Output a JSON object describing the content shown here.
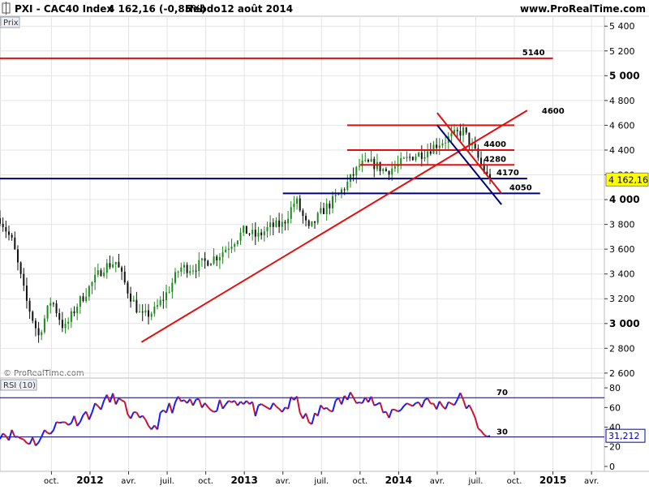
{
  "header": {
    "title": "PXI - CAC40 Index",
    "price_change": "4 162,16 (-0,85%)",
    "timeframe": "Hebdo",
    "date": "12 août 2014",
    "site": "www.ProRealTime.com"
  },
  "main_panel": {
    "label": "Prix",
    "watermark": "© ProRealTime.com"
  },
  "rsi_panel": {
    "label": "RSI (10)"
  },
  "colors": {
    "up_candle": "#1e8a1e",
    "down_candle": "#111111",
    "resistance": "#e01010",
    "support": "#00007a",
    "price_tag": "#ffff00",
    "rsi_up": "#1a1aff",
    "rsi_down": "#cc1133",
    "grid": "#e4e4e4"
  },
  "chart_data": [
    {
      "type": "candlestick",
      "y_axis": {
        "ylim": [
          2560,
          5480
        ],
        "ticks": [
          2600,
          2800,
          3000,
          3200,
          3400,
          3600,
          3800,
          4000,
          4200,
          4400,
          4600,
          4800,
          5000,
          5200,
          5400
        ],
        "tick_labels": [
          "2 600",
          "2 800",
          "3 000",
          "3 200",
          "3 400",
          "3 600",
          "3 800",
          "4 000",
          "4 200",
          "4 400",
          "4 600",
          "4 800",
          "5 000",
          "5 200",
          "5 400"
        ],
        "bold_ticks": [
          3000,
          4000,
          5000
        ]
      },
      "x_axis": {
        "start": "2011-06",
        "end": "2015-05",
        "ticks": [
          {
            "date": "2011-10",
            "label": "oct.",
            "bold": false
          },
          {
            "date": "2012-01",
            "label": "2012",
            "bold": true
          },
          {
            "date": "2012-04",
            "label": "avr.",
            "bold": false
          },
          {
            "date": "2012-07",
            "label": "juil.",
            "bold": false
          },
          {
            "date": "2012-10",
            "label": "oct.",
            "bold": false
          },
          {
            "date": "2013-01",
            "label": "2013",
            "bold": true
          },
          {
            "date": "2013-04",
            "label": "avr.",
            "bold": false
          },
          {
            "date": "2013-07",
            "label": "juil.",
            "bold": false
          },
          {
            "date": "2013-10",
            "label": "oct.",
            "bold": false
          },
          {
            "date": "2014-01",
            "label": "2014",
            "bold": true
          },
          {
            "date": "2014-04",
            "label": "avr.",
            "bold": false
          },
          {
            "date": "2014-07",
            "label": "juil.",
            "bold": false
          },
          {
            "date": "2014-10",
            "label": "oct.",
            "bold": false
          },
          {
            "date": "2015-01",
            "label": "2015",
            "bold": true
          },
          {
            "date": "2015-04",
            "label": "avr.",
            "bold": false
          }
        ]
      },
      "price_path": [
        [
          "2011-06",
          3850
        ],
        [
          "2011-07",
          3650
        ],
        [
          "2011-08",
          3200
        ],
        [
          "2011-09",
          2900
        ],
        [
          "2011-10",
          3200
        ],
        [
          "2011-11",
          2950
        ],
        [
          "2011-12",
          3150
        ],
        [
          "2012-01",
          3300
        ],
        [
          "2012-02",
          3450
        ],
        [
          "2012-03",
          3500
        ],
        [
          "2012-04",
          3250
        ],
        [
          "2012-05",
          3050
        ],
        [
          "2012-06",
          3100
        ],
        [
          "2012-07",
          3250
        ],
        [
          "2012-08",
          3450
        ],
        [
          "2012-09",
          3450
        ],
        [
          "2012-10",
          3500
        ],
        [
          "2012-11",
          3550
        ],
        [
          "2012-12",
          3650
        ],
        [
          "2013-01",
          3750
        ],
        [
          "2013-02",
          3700
        ],
        [
          "2013-03",
          3780
        ],
        [
          "2013-04",
          3800
        ],
        [
          "2013-05",
          4000
        ],
        [
          "2013-06",
          3750
        ],
        [
          "2013-07",
          3900
        ],
        [
          "2013-08",
          4000
        ],
        [
          "2013-09",
          4130
        ],
        [
          "2013-10",
          4280
        ],
        [
          "2013-11",
          4290
        ],
        [
          "2013-12",
          4230
        ],
        [
          "2014-01",
          4280
        ],
        [
          "2014-02",
          4350
        ],
        [
          "2014-03",
          4380
        ],
        [
          "2014-04",
          4450
        ],
        [
          "2014-05",
          4500
        ],
        [
          "2014-06",
          4560
        ],
        [
          "2014-07",
          4370
        ],
        [
          "2014-08",
          4162
        ]
      ],
      "last_price": {
        "value": 4162.16,
        "label": "4 162,16"
      },
      "horizontal_levels": [
        {
          "value": 5140,
          "label": "5140",
          "color": "red",
          "from": "2011-06",
          "to": "2015-01"
        },
        {
          "value": 4600,
          "label": "",
          "color": "red",
          "from": "2013-09",
          "to": "2014-10"
        },
        {
          "value": 4400,
          "label": "4400",
          "color": "red",
          "from": "2013-09",
          "to": "2014-10"
        },
        {
          "value": 4280,
          "label": "4280",
          "color": "red",
          "from": "2013-10",
          "to": "2014-10"
        },
        {
          "value": 4170,
          "label": "4170",
          "color": "blue",
          "from": "2011-06",
          "to": "2014-11"
        },
        {
          "value": 4050,
          "label": "4050",
          "color": "blue",
          "from": "2013-04",
          "to": "2014-12"
        }
      ],
      "trend_lines": [
        {
          "label": "4600",
          "color": "red",
          "from": [
            "2012-05",
            2850
          ],
          "to": [
            "2014-11",
            4720
          ]
        },
        {
          "label": "",
          "color": "red",
          "from": [
            "2014-04",
            4700
          ],
          "to": [
            "2014-09",
            4050
          ]
        },
        {
          "label": "",
          "color": "blue",
          "from": [
            "2014-04",
            4600
          ],
          "to": [
            "2014-09",
            3960
          ]
        }
      ]
    },
    {
      "type": "line",
      "name": "RSI (10)",
      "ylim": [
        -5,
        90
      ],
      "ticks": [
        0,
        20,
        40,
        60,
        80
      ],
      "levels": [
        {
          "value": 70,
          "label": "70"
        },
        {
          "value": 30,
          "label": "30"
        }
      ],
      "last_value": {
        "value": 31.212,
        "label": "31,212"
      },
      "path": [
        [
          "2011-06",
          35
        ],
        [
          "2011-07",
          32
        ],
        [
          "2011-08",
          27
        ],
        [
          "2011-09",
          26
        ],
        [
          "2011-10",
          40
        ],
        [
          "2011-11",
          45
        ],
        [
          "2011-12",
          48
        ],
        [
          "2012-01",
          55
        ],
        [
          "2012-02",
          65
        ],
        [
          "2012-03",
          70
        ],
        [
          "2012-04",
          55
        ],
        [
          "2012-05",
          45
        ],
        [
          "2012-06",
          40
        ],
        [
          "2012-07",
          58
        ],
        [
          "2012-08",
          66
        ],
        [
          "2012-09",
          63
        ],
        [
          "2012-10",
          60
        ],
        [
          "2012-11",
          63
        ],
        [
          "2012-12",
          67
        ],
        [
          "2013-01",
          68
        ],
        [
          "2013-02",
          55
        ],
        [
          "2013-03",
          60
        ],
        [
          "2013-04",
          58
        ],
        [
          "2013-05",
          68
        ],
        [
          "2013-06",
          42
        ],
        [
          "2013-07",
          58
        ],
        [
          "2013-08",
          62
        ],
        [
          "2013-09",
          70
        ],
        [
          "2013-10",
          72
        ],
        [
          "2013-11",
          66
        ],
        [
          "2013-12",
          52
        ],
        [
          "2014-01",
          60
        ],
        [
          "2014-02",
          64
        ],
        [
          "2014-03",
          66
        ],
        [
          "2014-04",
          62
        ],
        [
          "2014-05",
          65
        ],
        [
          "2014-06",
          70
        ],
        [
          "2014-07",
          45
        ],
        [
          "2014-08",
          31
        ]
      ]
    }
  ]
}
